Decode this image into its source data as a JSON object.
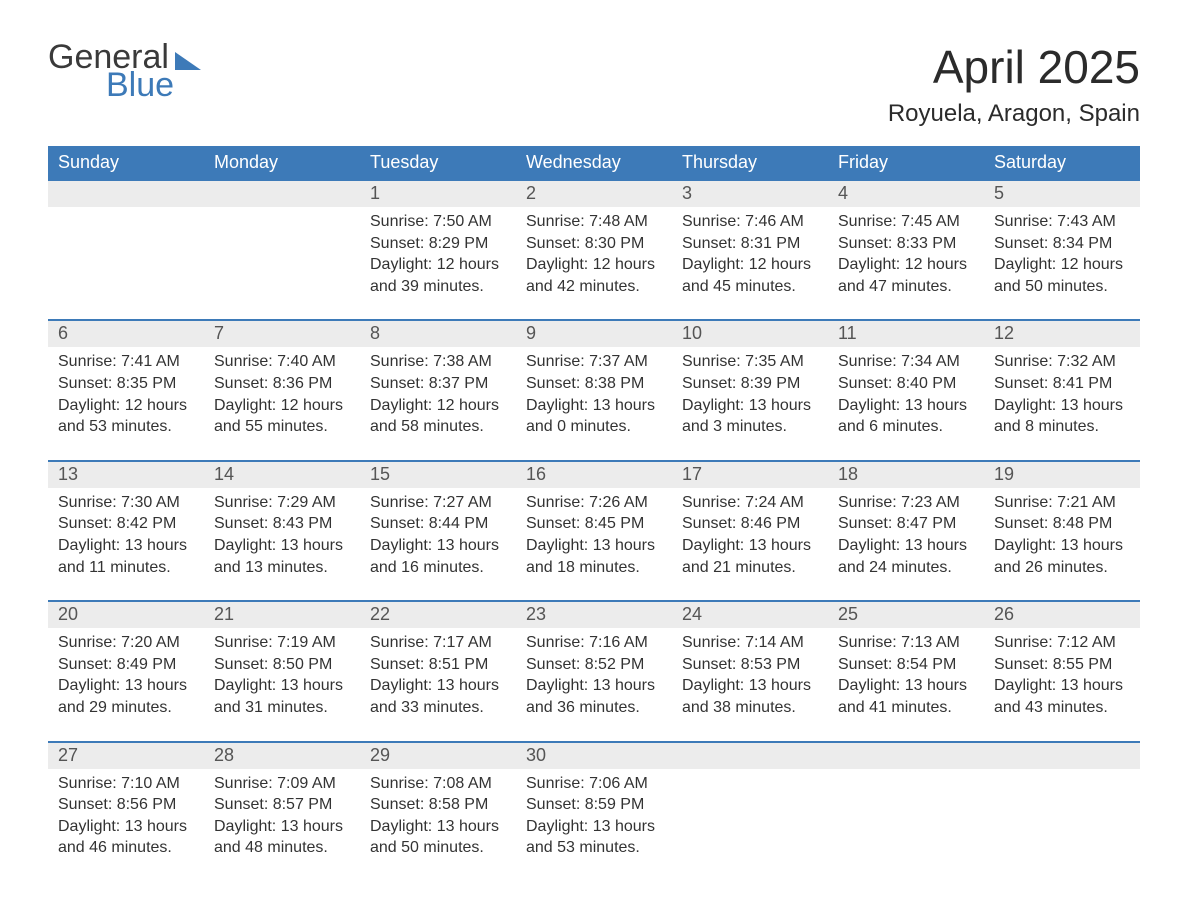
{
  "brand": {
    "word1": "General",
    "word2": "Blue"
  },
  "title": "April 2025",
  "location": "Royuela, Aragon, Spain",
  "colors": {
    "header_bg": "#3d7ab8",
    "header_text": "#ffffff",
    "daynum_bg": "#ececec",
    "row_border": "#3d7ab8",
    "logo_blue": "#3d7ab8",
    "body_text": "#333333",
    "page_bg": "#ffffff"
  },
  "typography": {
    "month_title_fontsize": 46,
    "location_fontsize": 24,
    "dayheader_fontsize": 18,
    "body_fontsize": 16
  },
  "day_headers": [
    "Sunday",
    "Monday",
    "Tuesday",
    "Wednesday",
    "Thursday",
    "Friday",
    "Saturday"
  ],
  "labels": {
    "sunrise": "Sunrise:",
    "sunset": "Sunset:",
    "daylight": "Daylight:"
  },
  "weeks": [
    [
      {
        "n": "",
        "sr": "",
        "ss": "",
        "dl1": "",
        "dl2": ""
      },
      {
        "n": "",
        "sr": "",
        "ss": "",
        "dl1": "",
        "dl2": ""
      },
      {
        "n": "1",
        "sr": "7:50 AM",
        "ss": "8:29 PM",
        "dl1": "12 hours",
        "dl2": "and 39 minutes."
      },
      {
        "n": "2",
        "sr": "7:48 AM",
        "ss": "8:30 PM",
        "dl1": "12 hours",
        "dl2": "and 42 minutes."
      },
      {
        "n": "3",
        "sr": "7:46 AM",
        "ss": "8:31 PM",
        "dl1": "12 hours",
        "dl2": "and 45 minutes."
      },
      {
        "n": "4",
        "sr": "7:45 AM",
        "ss": "8:33 PM",
        "dl1": "12 hours",
        "dl2": "and 47 minutes."
      },
      {
        "n": "5",
        "sr": "7:43 AM",
        "ss": "8:34 PM",
        "dl1": "12 hours",
        "dl2": "and 50 minutes."
      }
    ],
    [
      {
        "n": "6",
        "sr": "7:41 AM",
        "ss": "8:35 PM",
        "dl1": "12 hours",
        "dl2": "and 53 minutes."
      },
      {
        "n": "7",
        "sr": "7:40 AM",
        "ss": "8:36 PM",
        "dl1": "12 hours",
        "dl2": "and 55 minutes."
      },
      {
        "n": "8",
        "sr": "7:38 AM",
        "ss": "8:37 PM",
        "dl1": "12 hours",
        "dl2": "and 58 minutes."
      },
      {
        "n": "9",
        "sr": "7:37 AM",
        "ss": "8:38 PM",
        "dl1": "13 hours",
        "dl2": "and 0 minutes."
      },
      {
        "n": "10",
        "sr": "7:35 AM",
        "ss": "8:39 PM",
        "dl1": "13 hours",
        "dl2": "and 3 minutes."
      },
      {
        "n": "11",
        "sr": "7:34 AM",
        "ss": "8:40 PM",
        "dl1": "13 hours",
        "dl2": "and 6 minutes."
      },
      {
        "n": "12",
        "sr": "7:32 AM",
        "ss": "8:41 PM",
        "dl1": "13 hours",
        "dl2": "and 8 minutes."
      }
    ],
    [
      {
        "n": "13",
        "sr": "7:30 AM",
        "ss": "8:42 PM",
        "dl1": "13 hours",
        "dl2": "and 11 minutes."
      },
      {
        "n": "14",
        "sr": "7:29 AM",
        "ss": "8:43 PM",
        "dl1": "13 hours",
        "dl2": "and 13 minutes."
      },
      {
        "n": "15",
        "sr": "7:27 AM",
        "ss": "8:44 PM",
        "dl1": "13 hours",
        "dl2": "and 16 minutes."
      },
      {
        "n": "16",
        "sr": "7:26 AM",
        "ss": "8:45 PM",
        "dl1": "13 hours",
        "dl2": "and 18 minutes."
      },
      {
        "n": "17",
        "sr": "7:24 AM",
        "ss": "8:46 PM",
        "dl1": "13 hours",
        "dl2": "and 21 minutes."
      },
      {
        "n": "18",
        "sr": "7:23 AM",
        "ss": "8:47 PM",
        "dl1": "13 hours",
        "dl2": "and 24 minutes."
      },
      {
        "n": "19",
        "sr": "7:21 AM",
        "ss": "8:48 PM",
        "dl1": "13 hours",
        "dl2": "and 26 minutes."
      }
    ],
    [
      {
        "n": "20",
        "sr": "7:20 AM",
        "ss": "8:49 PM",
        "dl1": "13 hours",
        "dl2": "and 29 minutes."
      },
      {
        "n": "21",
        "sr": "7:19 AM",
        "ss": "8:50 PM",
        "dl1": "13 hours",
        "dl2": "and 31 minutes."
      },
      {
        "n": "22",
        "sr": "7:17 AM",
        "ss": "8:51 PM",
        "dl1": "13 hours",
        "dl2": "and 33 minutes."
      },
      {
        "n": "23",
        "sr": "7:16 AM",
        "ss": "8:52 PM",
        "dl1": "13 hours",
        "dl2": "and 36 minutes."
      },
      {
        "n": "24",
        "sr": "7:14 AM",
        "ss": "8:53 PM",
        "dl1": "13 hours",
        "dl2": "and 38 minutes."
      },
      {
        "n": "25",
        "sr": "7:13 AM",
        "ss": "8:54 PM",
        "dl1": "13 hours",
        "dl2": "and 41 minutes."
      },
      {
        "n": "26",
        "sr": "7:12 AM",
        "ss": "8:55 PM",
        "dl1": "13 hours",
        "dl2": "and 43 minutes."
      }
    ],
    [
      {
        "n": "27",
        "sr": "7:10 AM",
        "ss": "8:56 PM",
        "dl1": "13 hours",
        "dl2": "and 46 minutes."
      },
      {
        "n": "28",
        "sr": "7:09 AM",
        "ss": "8:57 PM",
        "dl1": "13 hours",
        "dl2": "and 48 minutes."
      },
      {
        "n": "29",
        "sr": "7:08 AM",
        "ss": "8:58 PM",
        "dl1": "13 hours",
        "dl2": "and 50 minutes."
      },
      {
        "n": "30",
        "sr": "7:06 AM",
        "ss": "8:59 PM",
        "dl1": "13 hours",
        "dl2": "and 53 minutes."
      },
      {
        "n": "",
        "sr": "",
        "ss": "",
        "dl1": "",
        "dl2": ""
      },
      {
        "n": "",
        "sr": "",
        "ss": "",
        "dl1": "",
        "dl2": ""
      },
      {
        "n": "",
        "sr": "",
        "ss": "",
        "dl1": "",
        "dl2": ""
      }
    ]
  ]
}
